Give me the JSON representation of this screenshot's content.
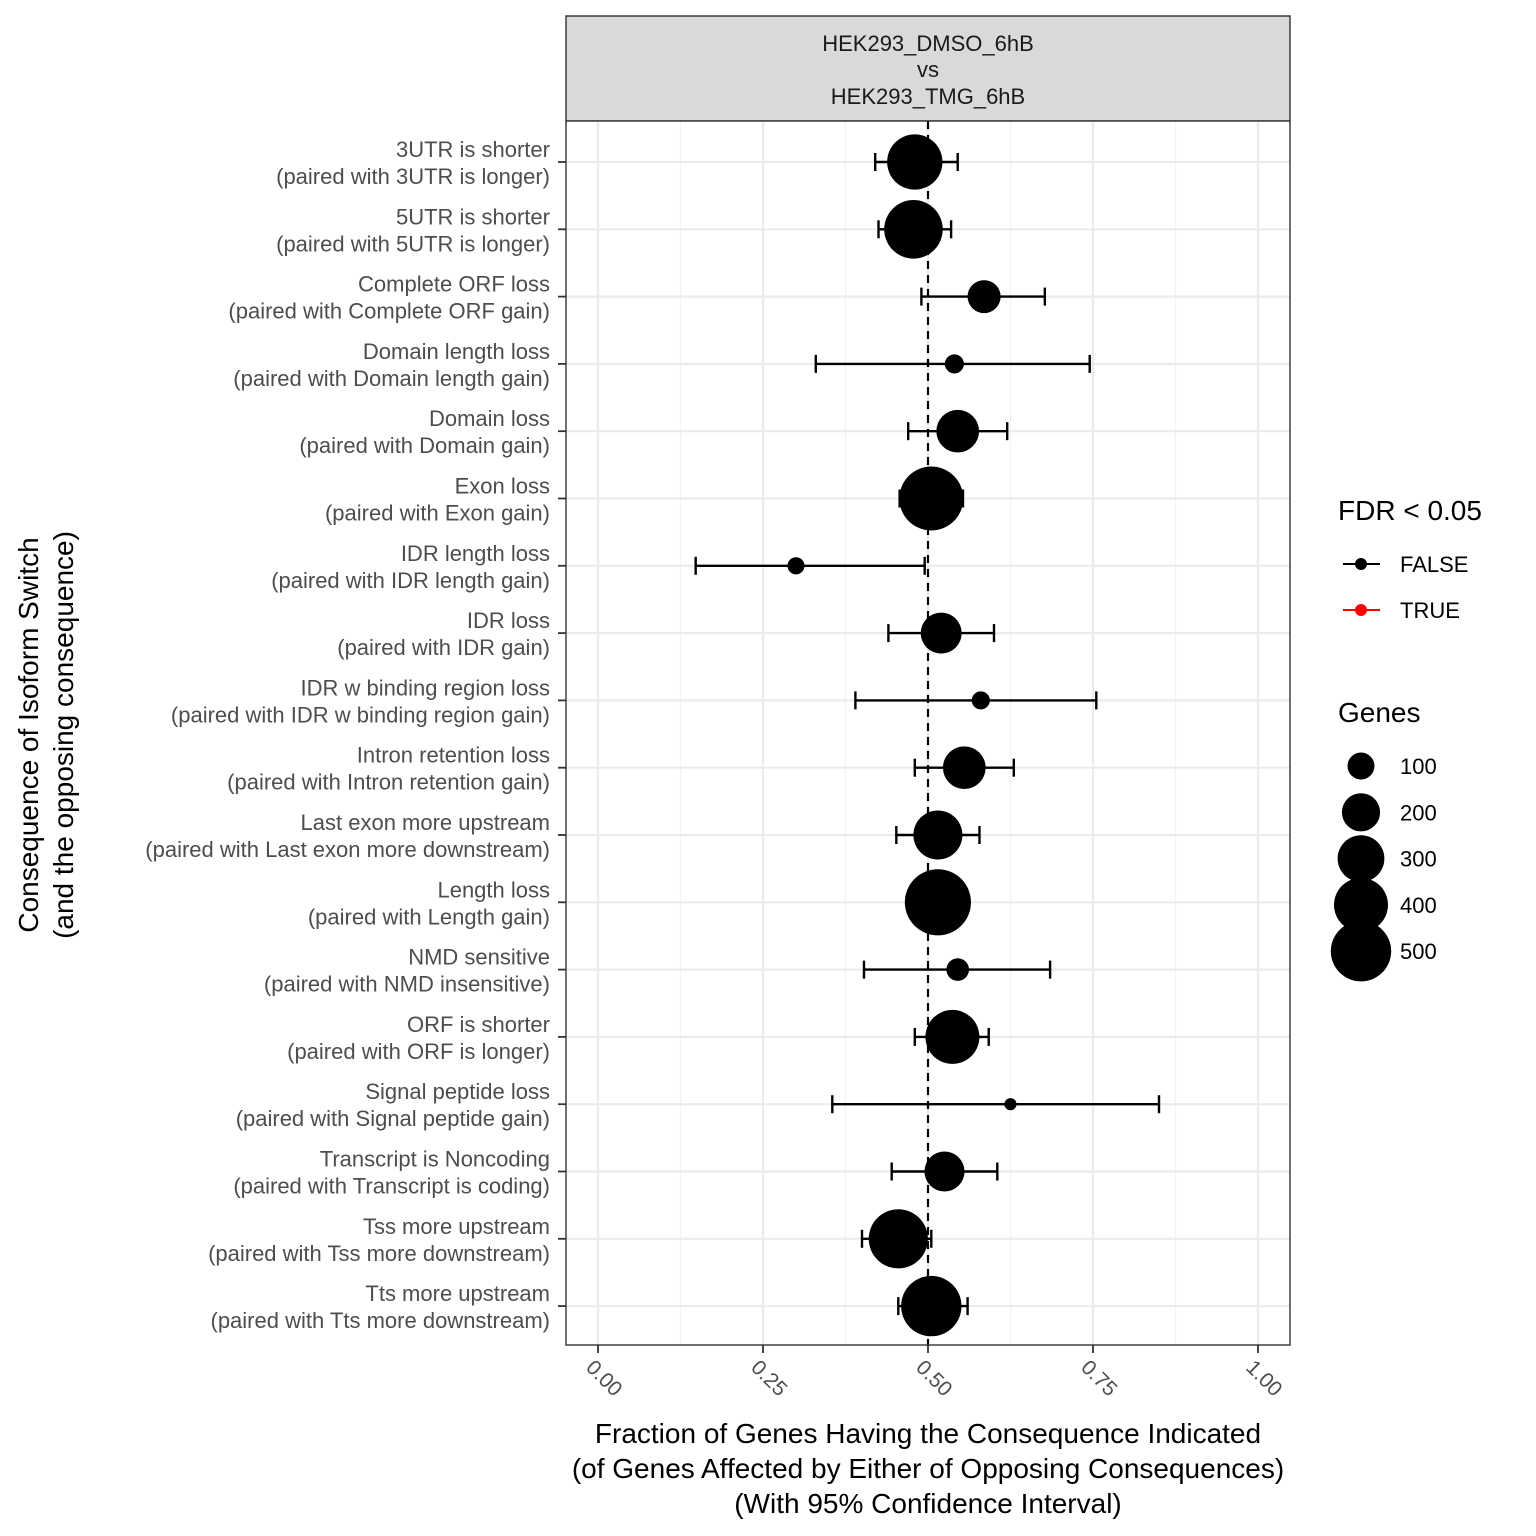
{
  "chart_data": {
    "type": "scatter",
    "facet_label": [
      "HEK293_DMSO_6hB",
      "vs",
      "HEK293_TMG_6hB"
    ],
    "xlabel": [
      "Fraction of Genes Having the Consequence Indicated",
      "(of Genes Affected by Either of Opposing Consequences)",
      "(With 95% Confidence Interval)"
    ],
    "ylabel": [
      "Consequence of Isoform Switch",
      "(and the opposing consequence)"
    ],
    "xlim": [
      0,
      1
    ],
    "xticks": [
      "0.00",
      "0.25",
      "0.50",
      "0.75",
      "1.00"
    ],
    "xtick_values": [
      0,
      0.25,
      0.5,
      0.75,
      1.0
    ],
    "reference_line_x": 0.5,
    "grid": true,
    "categories": [
      {
        "label": [
          "3UTR is shorter",
          "(paired with 3UTR is longer)"
        ],
        "x": 0.48,
        "lo": 0.42,
        "hi": 0.545,
        "genes": 420,
        "fdr_sig": false
      },
      {
        "label": [
          "5UTR is shorter",
          "(paired with 5UTR is longer)"
        ],
        "x": 0.478,
        "lo": 0.425,
        "hi": 0.535,
        "genes": 470,
        "fdr_sig": false
      },
      {
        "label": [
          "Complete ORF loss",
          "(paired with Complete ORF gain)"
        ],
        "x": 0.585,
        "lo": 0.49,
        "hi": 0.677,
        "genes": 150,
        "fdr_sig": false
      },
      {
        "label": [
          "Domain length loss",
          "(paired with Domain length gain)"
        ],
        "x": 0.54,
        "lo": 0.33,
        "hi": 0.745,
        "genes": 50,
        "fdr_sig": false
      },
      {
        "label": [
          "Domain loss",
          "(paired with Domain gain)"
        ],
        "x": 0.545,
        "lo": 0.47,
        "hi": 0.62,
        "genes": 250,
        "fdr_sig": false
      },
      {
        "label": [
          "Exon loss",
          "(paired with Exon gain)"
        ],
        "x": 0.505,
        "lo": 0.457,
        "hi": 0.553,
        "genes": 560,
        "fdr_sig": false
      },
      {
        "label": [
          "IDR length loss",
          "(paired with IDR length gain)"
        ],
        "x": 0.3,
        "lo": 0.148,
        "hi": 0.495,
        "genes": 40,
        "fdr_sig": false
      },
      {
        "label": [
          "IDR loss",
          "(paired with IDR gain)"
        ],
        "x": 0.52,
        "lo": 0.44,
        "hi": 0.6,
        "genes": 230,
        "fdr_sig": false
      },
      {
        "label": [
          "IDR w binding region loss",
          "(paired with IDR w binding region gain)"
        ],
        "x": 0.58,
        "lo": 0.39,
        "hi": 0.755,
        "genes": 45,
        "fdr_sig": false
      },
      {
        "label": [
          "Intron retention loss",
          "(paired with Intron retention gain)"
        ],
        "x": 0.555,
        "lo": 0.48,
        "hi": 0.63,
        "genes": 250,
        "fdr_sig": false
      },
      {
        "label": [
          "Last exon more upstream",
          "(paired with Last exon more downstream)"
        ],
        "x": 0.515,
        "lo": 0.452,
        "hi": 0.578,
        "genes": 330,
        "fdr_sig": false
      },
      {
        "label": [
          "Length loss",
          "(paired with Length gain)"
        ],
        "x": 0.515,
        "lo": 0.47,
        "hi": 0.56,
        "genes": 600,
        "fdr_sig": false
      },
      {
        "label": [
          "NMD sensitive",
          "(paired with NMD insensitive)"
        ],
        "x": 0.545,
        "lo": 0.403,
        "hi": 0.685,
        "genes": 70,
        "fdr_sig": false
      },
      {
        "label": [
          "ORF is shorter",
          "(paired with ORF is longer)"
        ],
        "x": 0.537,
        "lo": 0.48,
        "hi": 0.592,
        "genes": 400,
        "fdr_sig": false
      },
      {
        "label": [
          "Signal peptide loss",
          "(paired with Signal peptide gain)"
        ],
        "x": 0.625,
        "lo": 0.355,
        "hi": 0.85,
        "genes": 20,
        "fdr_sig": false
      },
      {
        "label": [
          "Transcript is Noncoding",
          "(paired with Transcript is coding)"
        ],
        "x": 0.525,
        "lo": 0.445,
        "hi": 0.605,
        "genes": 220,
        "fdr_sig": false
      },
      {
        "label": [
          "Tss more upstream",
          "(paired with Tss more downstream)"
        ],
        "x": 0.455,
        "lo": 0.4,
        "hi": 0.505,
        "genes": 480,
        "fdr_sig": false
      },
      {
        "label": [
          "Tts more upstream",
          "(paired with Tts more downstream)"
        ],
        "x": 0.505,
        "lo": 0.455,
        "hi": 0.56,
        "genes": 500,
        "fdr_sig": false
      }
    ],
    "legend": {
      "placement": "right",
      "color_title": "FDR < 0.05",
      "color_entries": [
        {
          "label": "FALSE",
          "color": "#000000"
        },
        {
          "label": "TRUE",
          "color": "#ff0000"
        }
      ],
      "size_title": "Genes",
      "size_entries": [
        100,
        200,
        300,
        400,
        500
      ]
    }
  }
}
